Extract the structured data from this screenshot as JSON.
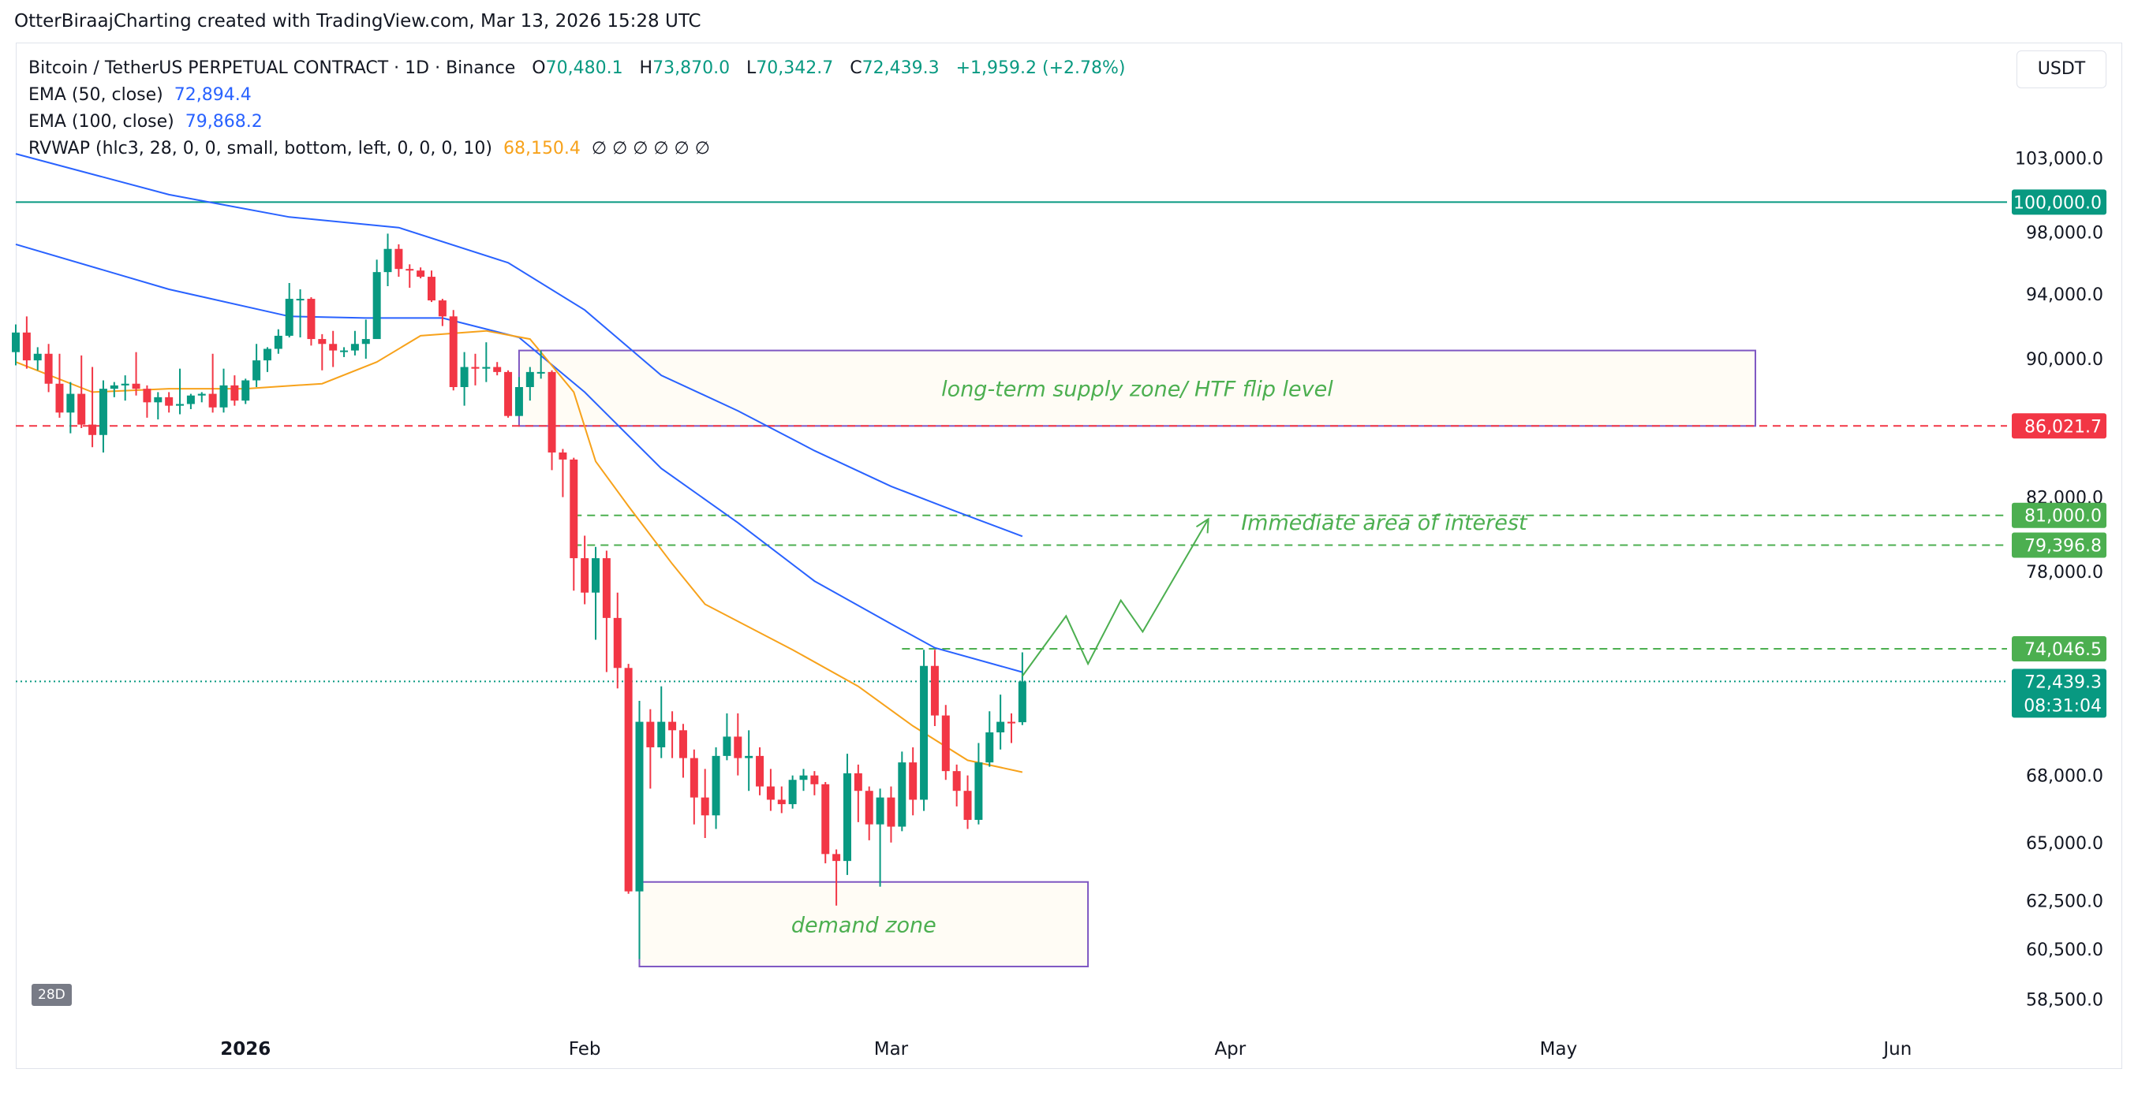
{
  "header": {
    "caption": "OtterBiraajCharting created with TradingView.com, Mar 13, 2026 15:28 UTC"
  },
  "legend": {
    "symbol": "Bitcoin / TetherUS PERPETUAL CONTRACT · 1D · Binance",
    "open_label": "O",
    "open": "70,480.1",
    "high_label": "H",
    "high": "73,870.0",
    "low_label": "L",
    "low": "70,342.7",
    "close_label": "C",
    "close": "72,439.3",
    "change": "+1,959.2 (+2.78%)",
    "ema50_label": "EMA (50, close)",
    "ema50_value": "72,894.4",
    "ema100_label": "EMA (100, close)",
    "ema100_value": "79,868.2",
    "rvwap_label": "RVWAP (hlc3, 28, 0, 0, small, bottom, left, 0, 0, 0, 10)",
    "rvwap_value": "68,150.4",
    "rvwap_extra": "∅ ∅ ∅ ∅ ∅ ∅"
  },
  "currency_button": "USDT",
  "interval_badge": "28D",
  "colors": {
    "up": "#089981",
    "down": "#f23645",
    "ema": "#2962ff",
    "rvwap": "#f7a21b",
    "zone_border": "#7e57c2",
    "zone_fill": "#fffcf5",
    "annotation": "#4caf50",
    "level_100k": "#089981"
  },
  "chart_data": {
    "type": "candlestick",
    "x_ticks": [
      {
        "date": "2026-01-01",
        "label": "2026",
        "bold": true
      },
      {
        "date": "2026-02-01",
        "label": "Feb"
      },
      {
        "date": "2026-03-01",
        "label": "Mar"
      },
      {
        "date": "2026-04-01",
        "label": "Apr"
      },
      {
        "date": "2026-05-01",
        "label": "May"
      },
      {
        "date": "2026-06-01",
        "label": "Jun"
      }
    ],
    "x_range": [
      "2025-12-11",
      "2026-06-11"
    ],
    "y_ticks": [
      103000,
      98000,
      94000,
      90000,
      82000,
      78000,
      68000,
      65000,
      62500,
      60500,
      58500
    ],
    "y_tick_labels": [
      "103,000.0",
      "98,000.0",
      "94,000.0",
      "90,000.0",
      "82,000.0",
      "78,000.0",
      "68,000.0",
      "65,000.0",
      "62,500.0",
      "60,500.0",
      "58,500.0"
    ],
    "y_scale": "log",
    "y_range": [
      57500,
      105800
    ],
    "price_tags": [
      {
        "value": 100000,
        "label": "100,000.0",
        "color": "#089981"
      },
      {
        "value": 86021.7,
        "label": "86,021.7",
        "color": "#f23645"
      },
      {
        "value": 81000,
        "label": "81,000.0",
        "color": "#4caf50"
      },
      {
        "value": 79396.8,
        "label": "79,396.8",
        "color": "#4caf50"
      },
      {
        "value": 74046.5,
        "label": "74,046.5",
        "color": "#4caf50"
      },
      {
        "value": 72439.3,
        "label": "72,439.3",
        "sublabel": "08:31:04",
        "color": "#089981"
      }
    ],
    "levels": [
      {
        "value": 100000,
        "style": "solid",
        "color": "#089981"
      },
      {
        "value": 86021.7,
        "style": "dashed",
        "color": "#f23645"
      },
      {
        "value": 81000,
        "style": "dashed",
        "color": "#4caf50",
        "from": "2026-01-31"
      },
      {
        "value": 79396.8,
        "style": "dashed",
        "color": "#4caf50",
        "from": "2026-01-31"
      },
      {
        "value": 74046.5,
        "style": "dashed",
        "color": "#4caf50",
        "from": "2026-03-02"
      },
      {
        "value": 72439.3,
        "style": "dotted",
        "color": "#089981"
      }
    ],
    "zones": [
      {
        "label": "long-term supply zone/ HTF flip level",
        "from": "2026-01-26",
        "to": "2026-05-19",
        "top": 90500,
        "bottom": 86021.7
      },
      {
        "label": "demand zone",
        "from": "2026-02-06",
        "to": "2026-03-19",
        "top": 63300,
        "bottom": 59800
      }
    ],
    "annotations": [
      {
        "text": "Immediate area of interest",
        "date": "2026-04-02",
        "value": 80650
      }
    ],
    "projection_path": [
      {
        "date": "2026-03-13",
        "value": 72700
      },
      {
        "date": "2026-03-17",
        "value": 75700
      },
      {
        "date": "2026-03-19",
        "value": 73300
      },
      {
        "date": "2026-03-22",
        "value": 76500
      },
      {
        "date": "2026-03-24",
        "value": 74900
      },
      {
        "date": "2026-03-30",
        "value": 80800
      }
    ],
    "series": [
      {
        "name": "EMA (50, close)",
        "type": "line",
        "color": "#2962ff",
        "points": [
          [
            "2025-12-11",
            97200
          ],
          [
            "2025-12-25",
            94300
          ],
          [
            "2026-01-05",
            92600
          ],
          [
            "2026-01-12",
            92500
          ],
          [
            "2026-01-19",
            92500
          ],
          [
            "2026-01-26",
            91300
          ],
          [
            "2026-02-01",
            88000
          ],
          [
            "2026-02-08",
            83600
          ],
          [
            "2026-02-15",
            80600
          ],
          [
            "2026-02-22",
            77500
          ],
          [
            "2026-03-01",
            75300
          ],
          [
            "2026-03-05",
            74100
          ],
          [
            "2026-03-13",
            72894.4
          ]
        ]
      },
      {
        "name": "EMA (100, close)",
        "type": "line",
        "color": "#2962ff",
        "points": [
          [
            "2025-12-11",
            103300
          ],
          [
            "2025-12-25",
            100500
          ],
          [
            "2026-01-05",
            99000
          ],
          [
            "2026-01-15",
            98300
          ],
          [
            "2026-01-25",
            96000
          ],
          [
            "2026-02-01",
            93000
          ],
          [
            "2026-02-08",
            89000
          ],
          [
            "2026-02-15",
            86900
          ],
          [
            "2026-02-22",
            84600
          ],
          [
            "2026-03-01",
            82600
          ],
          [
            "2026-03-07",
            81200
          ],
          [
            "2026-03-13",
            79868.2
          ]
        ]
      },
      {
        "name": "RVWAP",
        "type": "line",
        "color": "#f7a21b",
        "points": [
          [
            "2025-12-11",
            89800
          ],
          [
            "2025-12-18",
            88000
          ],
          [
            "2025-12-25",
            88200
          ],
          [
            "2026-01-01",
            88200
          ],
          [
            "2026-01-08",
            88500
          ],
          [
            "2026-01-13",
            89800
          ],
          [
            "2026-01-17",
            91400
          ],
          [
            "2026-01-23",
            91700
          ],
          [
            "2026-01-27",
            91200
          ],
          [
            "2026-01-31",
            88000
          ],
          [
            "2026-02-02",
            84000
          ],
          [
            "2026-02-05",
            81500
          ],
          [
            "2026-02-09",
            78400
          ],
          [
            "2026-02-12",
            76300
          ],
          [
            "2026-02-20",
            74000
          ],
          [
            "2026-02-26",
            72200
          ],
          [
            "2026-03-03",
            70300
          ],
          [
            "2026-03-08",
            68700
          ],
          [
            "2026-03-13",
            68150.4
          ]
        ]
      }
    ],
    "candles": [
      [
        "2025-12-11",
        90400,
        92100,
        89600,
        91600
      ],
      [
        "2025-12-12",
        91600,
        92600,
        89400,
        89900
      ],
      [
        "2025-12-13",
        89900,
        90700,
        89300,
        90300
      ],
      [
        "2025-12-14",
        90300,
        90900,
        88000,
        88500
      ],
      [
        "2025-12-15",
        88500,
        90300,
        86500,
        86800
      ],
      [
        "2025-12-16",
        86800,
        88600,
        85600,
        87900
      ],
      [
        "2025-12-17",
        87900,
        90200,
        85900,
        86100
      ],
      [
        "2025-12-18",
        86100,
        89500,
        84800,
        85500
      ],
      [
        "2025-12-19",
        85500,
        88700,
        84500,
        88200
      ],
      [
        "2025-12-20",
        88200,
        88600,
        87700,
        88400
      ],
      [
        "2025-12-21",
        88400,
        89000,
        87500,
        88500
      ],
      [
        "2025-12-22",
        88500,
        90400,
        87800,
        88200
      ],
      [
        "2025-12-23",
        88200,
        88400,
        86500,
        87400
      ],
      [
        "2025-12-24",
        87400,
        88000,
        86400,
        87700
      ],
      [
        "2025-12-25",
        87700,
        88000,
        86800,
        87200
      ],
      [
        "2025-12-26",
        87200,
        89400,
        86700,
        87300
      ],
      [
        "2025-12-27",
        87300,
        87900,
        87000,
        87800
      ],
      [
        "2025-12-28",
        87800,
        88000,
        87400,
        87900
      ],
      [
        "2025-12-29",
        87900,
        90300,
        86800,
        87100
      ],
      [
        "2025-12-30",
        87100,
        89400,
        86800,
        88400
      ],
      [
        "2025-12-31",
        88400,
        89000,
        87200,
        87500
      ],
      [
        "2026-01-01",
        87500,
        88800,
        87300,
        88700
      ],
      [
        "2026-01-02",
        88700,
        90900,
        88300,
        89900
      ],
      [
        "2026-01-03",
        89900,
        90700,
        89200,
        90600
      ],
      [
        "2026-01-04",
        90600,
        91800,
        90300,
        91400
      ],
      [
        "2026-01-05",
        91400,
        94700,
        91300,
        93700
      ],
      [
        "2026-01-06",
        93700,
        94300,
        91300,
        93700
      ],
      [
        "2026-01-07",
        93700,
        93800,
        90800,
        91200
      ],
      [
        "2026-01-08",
        91200,
        91500,
        89300,
        90900
      ],
      [
        "2026-01-09",
        90900,
        91700,
        89500,
        90500
      ],
      [
        "2026-01-10",
        90500,
        90700,
        90100,
        90500
      ],
      [
        "2026-01-11",
        90500,
        91700,
        90200,
        90900
      ],
      [
        "2026-01-12",
        90900,
        92400,
        90000,
        91200
      ],
      [
        "2026-01-13",
        91200,
        96200,
        91200,
        95400
      ],
      [
        "2026-01-14",
        95400,
        97900,
        94500,
        96900
      ],
      [
        "2026-01-15",
        96900,
        97200,
        95100,
        95600
      ],
      [
        "2026-01-16",
        95600,
        95900,
        94400,
        95500
      ],
      [
        "2026-01-17",
        95500,
        95700,
        95000,
        95100
      ],
      [
        "2026-01-18",
        95100,
        95500,
        93500,
        93600
      ],
      [
        "2026-01-19",
        93600,
        93700,
        92000,
        92600
      ],
      [
        "2026-01-20",
        92600,
        93000,
        88100,
        88300
      ],
      [
        "2026-01-21",
        88300,
        90400,
        87200,
        89500
      ],
      [
        "2026-01-22",
        89500,
        90300,
        88400,
        89400
      ],
      [
        "2026-01-23",
        89400,
        91000,
        88600,
        89500
      ],
      [
        "2026-01-24",
        89500,
        89800,
        89000,
        89200
      ],
      [
        "2026-01-25",
        89200,
        89300,
        86500,
        86600
      ],
      [
        "2026-01-26",
        86600,
        88900,
        86600,
        88300
      ],
      [
        "2026-01-27",
        88300,
        89500,
        87500,
        89200
      ],
      [
        "2026-01-28",
        89200,
        90500,
        88800,
        89200
      ],
      [
        "2026-01-29",
        89200,
        89300,
        83500,
        84500
      ],
      [
        "2026-01-30",
        84500,
        84700,
        82000,
        84100
      ],
      [
        "2026-01-31",
        84100,
        84200,
        77000,
        78700
      ],
      [
        "2026-02-01",
        78700,
        79900,
        76300,
        76900
      ],
      [
        "2026-02-02",
        76900,
        79300,
        74500,
        78700
      ],
      [
        "2026-02-03",
        78700,
        79100,
        72900,
        75600
      ],
      [
        "2026-02-04",
        75600,
        76900,
        72100,
        73100
      ],
      [
        "2026-02-05",
        73100,
        73300,
        62800,
        62900
      ],
      [
        "2026-02-06",
        62900,
        71500,
        60100,
        70500
      ],
      [
        "2026-02-07",
        70500,
        71100,
        67400,
        69300
      ],
      [
        "2026-02-08",
        69300,
        72200,
        68800,
        70500
      ],
      [
        "2026-02-09",
        70500,
        71000,
        68800,
        70100
      ],
      [
        "2026-02-10",
        70100,
        70400,
        67900,
        68800
      ],
      [
        "2026-02-11",
        68800,
        69200,
        65800,
        67000
      ],
      [
        "2026-02-12",
        67000,
        68300,
        65200,
        66200
      ],
      [
        "2026-02-13",
        66200,
        69300,
        65600,
        68900
      ],
      [
        "2026-02-14",
        68900,
        70900,
        68700,
        69800
      ],
      [
        "2026-02-15",
        69800,
        70900,
        68000,
        68800
      ],
      [
        "2026-02-16",
        68800,
        70100,
        67300,
        68900
      ],
      [
        "2026-02-17",
        68900,
        69300,
        67100,
        67500
      ],
      [
        "2026-02-18",
        67500,
        68300,
        66400,
        66900
      ],
      [
        "2026-02-19",
        66900,
        67500,
        66300,
        66700
      ],
      [
        "2026-02-20",
        66700,
        68000,
        66500,
        67800
      ],
      [
        "2026-02-21",
        67800,
        68300,
        67300,
        68000
      ],
      [
        "2026-02-22",
        68000,
        68200,
        67100,
        67600
      ],
      [
        "2026-02-23",
        67600,
        67700,
        64100,
        64500
      ],
      [
        "2026-02-24",
        64500,
        64700,
        62300,
        64200
      ],
      [
        "2026-02-25",
        64200,
        69000,
        63600,
        68100
      ],
      [
        "2026-02-26",
        68100,
        68500,
        65900,
        67300
      ],
      [
        "2026-02-27",
        67300,
        67500,
        65100,
        65800
      ],
      [
        "2026-02-28",
        65800,
        67400,
        63100,
        67000
      ],
      [
        "2026-03-01",
        67000,
        67500,
        65000,
        65700
      ],
      [
        "2026-03-02",
        65700,
        69100,
        65500,
        68600
      ],
      [
        "2026-03-03",
        68600,
        69300,
        66200,
        66900
      ],
      [
        "2026-03-04",
        66900,
        74000,
        66400,
        73200
      ],
      [
        "2026-03-05",
        73200,
        74000,
        70300,
        70800
      ],
      [
        "2026-03-06",
        70800,
        71300,
        67800,
        68200
      ],
      [
        "2026-03-07",
        68200,
        68500,
        66600,
        67300
      ],
      [
        "2026-03-08",
        67300,
        68000,
        65600,
        66000
      ],
      [
        "2026-03-09",
        66000,
        69500,
        65800,
        68600
      ],
      [
        "2026-03-10",
        68600,
        71000,
        68400,
        70000
      ],
      [
        "2026-03-11",
        70000,
        71800,
        69200,
        70500
      ],
      [
        "2026-03-12",
        70500,
        70900,
        69500,
        70480.1
      ],
      [
        "2026-03-13",
        70480.1,
        73870,
        70342.7,
        72439.3
      ]
    ]
  }
}
